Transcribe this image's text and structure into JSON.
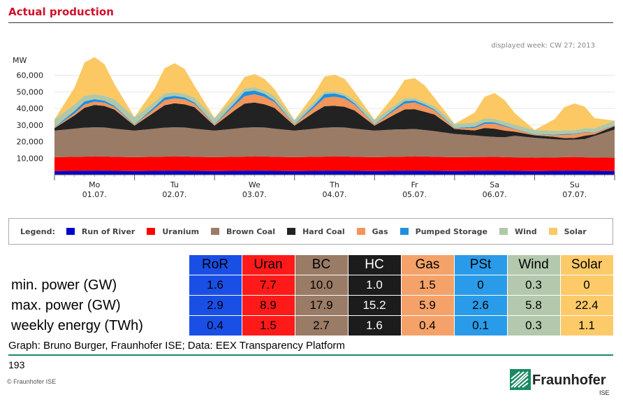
{
  "header": {
    "title": "Actual production"
  },
  "chart_data": {
    "type": "area",
    "stacked": true,
    "ylabel": "MW",
    "ylim": [
      0,
      70000
    ],
    "yticks": [
      10000,
      20000,
      30000,
      40000,
      50000,
      60000
    ],
    "ytick_labels": [
      "10,000",
      "20,000",
      "30,000",
      "40,000",
      "50,000",
      "60,000"
    ],
    "annotation": "displayed week: CW 27; 2013",
    "days": [
      {
        "dow": "Mo",
        "date": "01.07."
      },
      {
        "dow": "Tu",
        "date": "02.07."
      },
      {
        "dow": "We",
        "date": "03.07."
      },
      {
        "dow": "Th",
        "date": "04.07."
      },
      {
        "dow": "Fr",
        "date": "05.07."
      },
      {
        "dow": "Sa",
        "date": "06.07."
      },
      {
        "dow": "Su",
        "date": "07.07."
      }
    ],
    "time_hours": [
      0,
      6,
      9,
      12,
      15,
      18,
      24,
      30,
      33,
      36,
      39,
      42,
      48,
      54,
      57,
      60,
      63,
      66,
      72,
      78,
      81,
      84,
      87,
      90,
      96,
      102,
      105,
      108,
      111,
      114,
      120,
      126,
      129,
      132,
      135,
      138,
      144,
      150,
      153,
      156,
      159,
      162,
      168
    ],
    "series": [
      {
        "name": "Run of River",
        "color": "#0000cc",
        "values": [
          2200,
          2300,
          2400,
          2500,
          2400,
          2300,
          2200,
          2300,
          2400,
          2500,
          2400,
          2300,
          2200,
          2300,
          2400,
          2500,
          2400,
          2300,
          2200,
          2300,
          2400,
          2500,
          2400,
          2300,
          2200,
          2300,
          2400,
          2500,
          2400,
          2300,
          2200,
          2300,
          2400,
          2500,
          2400,
          2300,
          2200,
          2300,
          2400,
          2500,
          2400,
          2300,
          2200
        ]
      },
      {
        "name": "Uranium",
        "color": "#ff0000",
        "values": [
          8400,
          8500,
          8500,
          8600,
          8600,
          8500,
          8400,
          8500,
          8500,
          8600,
          8600,
          8500,
          8400,
          8500,
          8500,
          8600,
          8600,
          8500,
          8400,
          8500,
          8500,
          8600,
          8600,
          8500,
          8400,
          8500,
          8500,
          8600,
          8600,
          8500,
          8400,
          8400,
          8300,
          8300,
          8200,
          8200,
          8100,
          8100,
          8200,
          8200,
          8100,
          8100,
          8100
        ]
      },
      {
        "name": "Brown Coal",
        "color": "#9a7b66",
        "values": [
          16000,
          17000,
          17500,
          17500,
          17500,
          17000,
          16000,
          17000,
          17500,
          17500,
          17500,
          17000,
          16000,
          17000,
          17500,
          17500,
          17500,
          17000,
          16000,
          17000,
          17500,
          17500,
          17500,
          17000,
          16000,
          16500,
          16500,
          16500,
          16000,
          15500,
          14000,
          13000,
          12500,
          12000,
          12000,
          13000,
          12000,
          11000,
          10500,
          10500,
          11000,
          13000,
          17000
        ]
      },
      {
        "name": "Hard Coal",
        "color": "#222222",
        "values": [
          1500,
          8000,
          12000,
          13500,
          13000,
          11500,
          3000,
          10000,
          13500,
          14500,
          14000,
          13000,
          3000,
          11000,
          14500,
          15000,
          14000,
          12500,
          3000,
          10000,
          13000,
          13000,
          12500,
          11000,
          3000,
          9000,
          12000,
          12000,
          11000,
          10000,
          3000,
          3000,
          5000,
          5000,
          4000,
          2500,
          1500,
          1500,
          1000,
          1000,
          2000,
          1000,
          2000
        ]
      },
      {
        "name": "Gas",
        "color": "#f4955a",
        "values": [
          400,
          1200,
          2000,
          2000,
          2000,
          1500,
          500,
          2000,
          3000,
          3000,
          3000,
          2000,
          600,
          3000,
          4500,
          5000,
          4500,
          3500,
          600,
          3000,
          5000,
          5500,
          5000,
          3500,
          600,
          2500,
          3500,
          4000,
          3500,
          2500,
          400,
          1500,
          2500,
          3000,
          2500,
          1500,
          400,
          1000,
          2000,
          2200,
          2000,
          1000,
          400
        ]
      },
      {
        "name": "Pumped Storage",
        "color": "#1f8fde",
        "values": [
          200,
          1500,
          1800,
          1500,
          1200,
          800,
          200,
          1200,
          1800,
          1500,
          1200,
          800,
          200,
          1500,
          2600,
          2200,
          1800,
          1000,
          200,
          1500,
          2300,
          2000,
          1500,
          800,
          200,
          1000,
          1500,
          1200,
          1000,
          600,
          200,
          800,
          1000,
          800,
          600,
          300,
          200,
          300,
          500,
          400,
          300,
          200,
          200
        ]
      },
      {
        "name": "Wind",
        "color": "#b0c8a8",
        "values": [
          4700,
          4000,
          3500,
          3000,
          3000,
          4000,
          4500,
          3000,
          2500,
          2200,
          2200,
          3000,
          3800,
          2500,
          2000,
          2000,
          2000,
          2800,
          2600,
          2000,
          1500,
          1300,
          1400,
          2000,
          2800,
          2200,
          1800,
          1500,
          1500,
          2000,
          2500,
          2500,
          2300,
          2200,
          2300,
          2500,
          2600,
          2400,
          2200,
          2200,
          2300,
          2500,
          2800
        ]
      },
      {
        "name": "Solar",
        "color": "#fbc863",
        "values": [
          0,
          10000,
          20000,
          22400,
          19000,
          9000,
          0,
          8000,
          15000,
          17500,
          15000,
          7000,
          0,
          4000,
          7000,
          8000,
          7000,
          4000,
          0,
          5000,
          9000,
          10000,
          9000,
          5000,
          0,
          6000,
          11000,
          12000,
          10000,
          5000,
          0,
          6000,
          13000,
          15500,
          13000,
          7000,
          0,
          7000,
          14000,
          16000,
          13000,
          6000,
          0
        ]
      }
    ]
  },
  "legend": {
    "heading": "Legend:",
    "items": [
      {
        "label": "Run of River",
        "color": "#0000cc"
      },
      {
        "label": "Uranium",
        "color": "#ff0000"
      },
      {
        "label": "Brown Coal",
        "color": "#9a7b66"
      },
      {
        "label": "Hard Coal",
        "color": "#222222"
      },
      {
        "label": "Gas",
        "color": "#f4955a"
      },
      {
        "label": "Pumped Storage",
        "color": "#1f8fde"
      },
      {
        "label": "Wind",
        "color": "#b0c8a8"
      },
      {
        "label": "Solar",
        "color": "#fbc863"
      }
    ]
  },
  "table": {
    "columns": [
      {
        "label": "RoR",
        "bg": "#1a4fe6",
        "fg": "#000000"
      },
      {
        "label": "Uran",
        "bg": "#ff1a1a",
        "fg": "#000000"
      },
      {
        "label": "BC",
        "bg": "#9a7b66",
        "fg": "#000000"
      },
      {
        "label": "HC",
        "bg": "#1c1c1c",
        "fg": "#ffffff"
      },
      {
        "label": "Gas",
        "bg": "#f4a26a",
        "fg": "#000000"
      },
      {
        "label": "PSt",
        "bg": "#2a9be8",
        "fg": "#000000"
      },
      {
        "label": "Wind",
        "bg": "#b3c8ad",
        "fg": "#000000"
      },
      {
        "label": "Solar",
        "bg": "#fdca6a",
        "fg": "#000000"
      }
    ],
    "rows": [
      {
        "label": "min. power (GW)",
        "values": [
          "1.6",
          "7.7",
          "10.0",
          "1.0",
          "1.5",
          "0",
          "0.3",
          "0"
        ]
      },
      {
        "label": "max. power (GW)",
        "values": [
          "2.9",
          "8.9",
          "17.9",
          "15.2",
          "5.9",
          "2.6",
          "5.8",
          "22.4"
        ]
      },
      {
        "label": "weekly energy (TWh)",
        "values": [
          "0.4",
          "1.5",
          "2.7",
          "1.6",
          "0.4",
          "0.1",
          "0.3",
          "1.1"
        ]
      }
    ]
  },
  "footer": {
    "source": "Graph: Bruno Burger, Fraunhofer ISE; Data: EEX Transparency Platform",
    "page_number": "193",
    "copyright": "© Fraunhofer ISE",
    "logo_name": "Fraunhofer",
    "logo_sub": "ISE"
  }
}
